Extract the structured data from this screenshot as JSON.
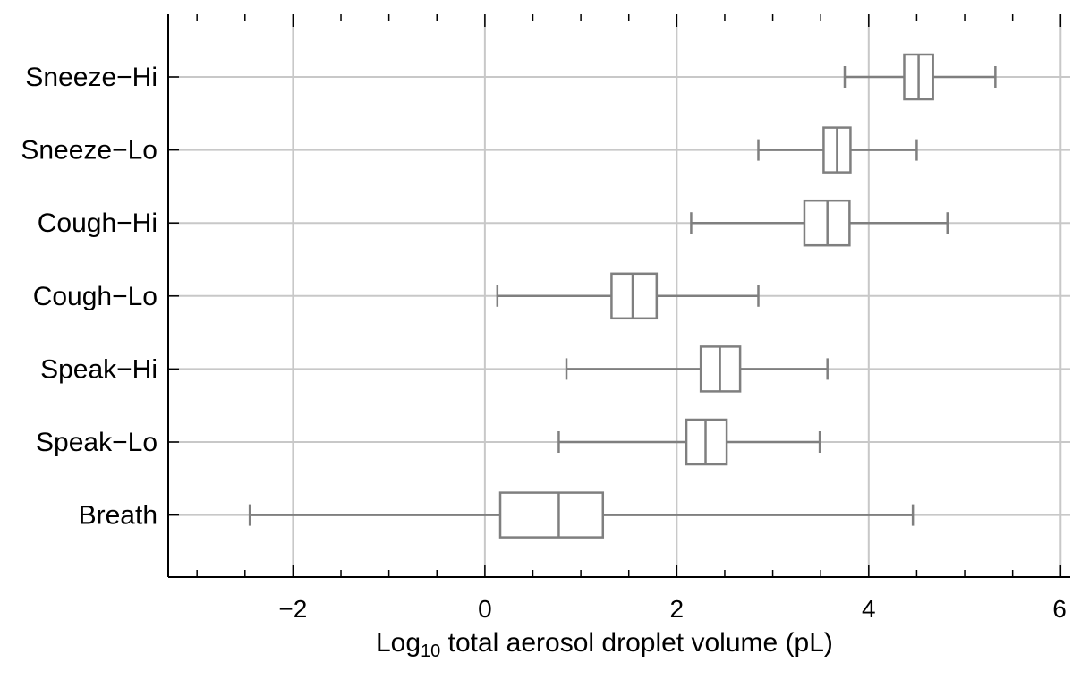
{
  "chart_data": {
    "type": "box",
    "categories": [
      "Sneeze−Hi",
      "Sneeze−Lo",
      "Cough−Hi",
      "Cough−Lo",
      "Speak−Hi",
      "Speak−Lo",
      "Breath"
    ],
    "boxes": [
      {
        "min": 3.75,
        "q1": 4.37,
        "median": 4.52,
        "q3": 4.67,
        "max": 5.32
      },
      {
        "min": 2.85,
        "q1": 3.53,
        "median": 3.67,
        "q3": 3.81,
        "max": 4.5
      },
      {
        "min": 2.15,
        "q1": 3.33,
        "median": 3.57,
        "q3": 3.8,
        "max": 4.82
      },
      {
        "min": 0.13,
        "q1": 1.32,
        "median": 1.54,
        "q3": 1.79,
        "max": 2.85
      },
      {
        "min": 0.85,
        "q1": 2.25,
        "median": 2.45,
        "q3": 2.66,
        "max": 3.57
      },
      {
        "min": 0.77,
        "q1": 2.1,
        "median": 2.3,
        "q3": 2.52,
        "max": 3.49
      },
      {
        "min": -2.45,
        "q1": 0.16,
        "median": 0.77,
        "q3": 1.23,
        "max": 4.46
      }
    ],
    "xticks": [
      -2,
      0,
      2,
      4,
      6
    ],
    "xtick_labels": [
      "−2",
      "0",
      "2",
      "4",
      "6"
    ],
    "xlim": [
      -3.3,
      6.1
    ],
    "xlabel_prefix": "Log",
    "xlabel_sub": "10",
    "xlabel_rest": " total aerosol droplet volume (pL)",
    "grid": true,
    "box_color": "#7f7f7f",
    "grid_color": "#c8c8c8",
    "axis_color": "#000000"
  }
}
